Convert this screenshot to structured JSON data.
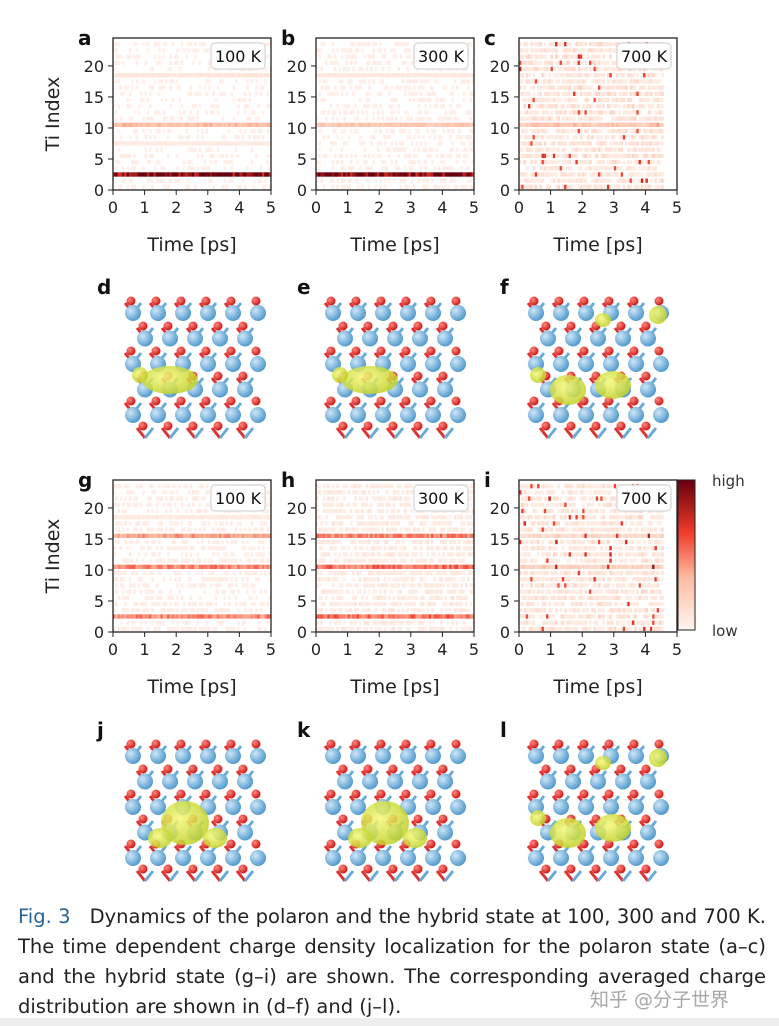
{
  "figure": {
    "heatmap_panels": [
      {
        "letter": "a",
        "temperature": "100 K"
      },
      {
        "letter": "b",
        "temperature": "300 K"
      },
      {
        "letter": "c",
        "temperature": "700 K"
      },
      {
        "letter": "g",
        "temperature": "100 K"
      },
      {
        "letter": "h",
        "temperature": "300 K"
      },
      {
        "letter": "i",
        "temperature": "700 K"
      }
    ],
    "structure_panels": [
      "d",
      "e",
      "f",
      "j",
      "k",
      "l"
    ],
    "xlabel": "Time [ps]",
    "ylabel": "Ti Index",
    "xlim": [
      0,
      5
    ],
    "xticks": [
      0,
      1,
      2,
      3,
      4,
      5
    ],
    "ylim": [
      0,
      24.5
    ],
    "yticks": [
      0,
      5,
      10,
      15,
      20
    ],
    "colorbar": {
      "high": "high",
      "low": "low"
    },
    "caption": {
      "label": "Fig. 3",
      "text": "Dynamics of the polaron and the hybrid state at 100, 300 and 700 K. The time dependent charge density localization for the polaron state (a–c) and the hybrid state (g–i) are shown. The corresponding averaged charge distribution are shown in (d–f) and (j–l)."
    },
    "watermark": "知乎 @分子世界"
  }
}
